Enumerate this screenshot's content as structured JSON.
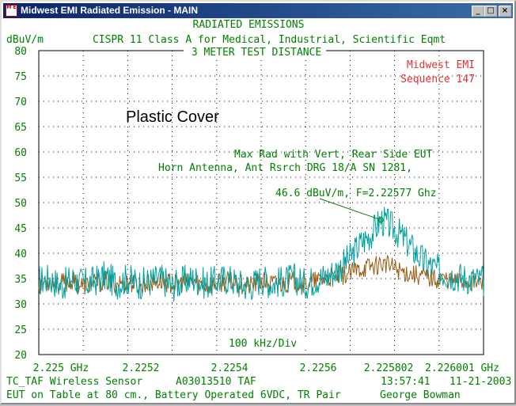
{
  "window": {
    "title": "Midwest EMI Radiated Emission - MAIN",
    "icon_name": "emi-app-icon",
    "icon_text": "M E"
  },
  "header": {
    "line1": "RADIATED EMISSIONS",
    "line2": "CISPR 11 Class A for Medical, Industrial, Scientific Eqmt",
    "line3": "3 METER TEST DISTANCE"
  },
  "lab": {
    "name": "Midwest EMI",
    "sequence": "Sequence 147"
  },
  "annotations": {
    "cover": "Plastic Cover",
    "setup1": "Max Rad with Vert, Rear Side EUT",
    "setup2": "Horn Antenna, Ant Rsrch DRG 18/A SN 1281,",
    "peak_label": "46.6 dBuV/m, F=2.22577 Ghz",
    "div_label": "100 kHz/Div"
  },
  "footer": {
    "eut": "TC_TAF Wireless Sensor",
    "job": "A03013510 TAF",
    "time": "13:57:41",
    "date": "11-21-2003",
    "setup": "EUT on Table at 80 cm., Battery Operated 6VDC, TR Pair",
    "operator": "George Bowman"
  },
  "colors": {
    "text": "#008000",
    "lab": "#e03030",
    "trace_vertical": "#00a0a0",
    "trace_horizontal": "#9a5a10",
    "grid": "#000000"
  },
  "chart_data": {
    "type": "line",
    "ylabel": "dBuV/m",
    "ylim": [
      20,
      80
    ],
    "yticks": [
      20,
      25,
      30,
      35,
      40,
      45,
      50,
      55,
      60,
      65,
      70,
      75,
      80
    ],
    "xlim": [
      2.225,
      2.226001
    ],
    "xtick_labels": [
      "2.225 GHz",
      "2.2252",
      "2.2254",
      "2.2256",
      "2.225802",
      "2.226001 GHz"
    ],
    "grid": true,
    "peak_marker": {
      "x": 2.22577,
      "y": 46.6
    },
    "series": [
      {
        "color": "#00a0a0",
        "x": [
          2.225,
          2.225025,
          2.22505,
          2.225075,
          2.2251,
          2.225125,
          2.22515,
          2.225175,
          2.2252,
          2.225225,
          2.22525,
          2.225275,
          2.2253,
          2.225325,
          2.22535,
          2.225375,
          2.2254,
          2.225425,
          2.22545,
          2.225475,
          2.2255,
          2.225525,
          2.22555,
          2.225575,
          2.2256,
          2.225625,
          2.22565,
          2.225675,
          2.2257,
          2.225725,
          2.22575,
          2.22577,
          2.22579,
          2.225815,
          2.22584,
          2.225865,
          2.22589,
          2.225915,
          2.22594,
          2.225965,
          2.226001
        ],
        "y": [
          34.5,
          35,
          33.5,
          35,
          34,
          34.5,
          35.5,
          34,
          35,
          34,
          34.5,
          35,
          33.5,
          34.5,
          35,
          34,
          34.5,
          35,
          34,
          33.5,
          35,
          34,
          34.5,
          35,
          34,
          35,
          35.5,
          37,
          39,
          42,
          44,
          46.6,
          45.5,
          43.5,
          41,
          38.5,
          37,
          36,
          35.5,
          35,
          34.5
        ]
      },
      {
        "color": "#9a5a10",
        "x": [
          2.225,
          2.225025,
          2.22505,
          2.225075,
          2.2251,
          2.225125,
          2.22515,
          2.225175,
          2.2252,
          2.225225,
          2.22525,
          2.225275,
          2.2253,
          2.225325,
          2.22535,
          2.225375,
          2.2254,
          2.225425,
          2.22545,
          2.225475,
          2.2255,
          2.225525,
          2.22555,
          2.225575,
          2.2256,
          2.225625,
          2.22565,
          2.225675,
          2.2257,
          2.225725,
          2.22575,
          2.22577,
          2.22579,
          2.225815,
          2.22584,
          2.225865,
          2.22589,
          2.225915,
          2.22594,
          2.225965,
          2.226001
        ],
        "y": [
          34,
          34.5,
          34,
          34.5,
          33.5,
          34,
          34.5,
          34,
          34.5,
          33.5,
          34,
          34.5,
          34,
          34,
          34.5,
          33.5,
          34,
          34.5,
          34,
          33.5,
          34.5,
          34,
          34,
          34.5,
          34,
          34.5,
          35,
          35.5,
          36,
          37,
          37.5,
          38,
          37.5,
          36.5,
          36,
          35.5,
          35,
          35,
          34.5,
          34.5,
          34
        ]
      }
    ]
  }
}
